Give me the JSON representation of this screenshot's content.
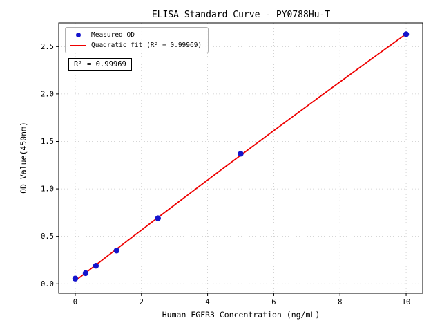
{
  "chart_data": {
    "type": "scatter",
    "title": "ELISA Standard Curve - PY0788Hu-T",
    "xlabel": "Human FGFR3 Concentration (ng/mL)",
    "ylabel": "OD Value(450nm)",
    "xlim": [
      -0.5,
      10.5
    ],
    "ylim": [
      -0.1,
      2.75
    ],
    "xticks": [
      0,
      2,
      4,
      6,
      8,
      10
    ],
    "xtick_labels": [
      "0",
      "2",
      "4",
      "6",
      "8",
      "10"
    ],
    "yticks": [
      0.0,
      0.5,
      1.0,
      1.5,
      2.0,
      2.5
    ],
    "ytick_labels": [
      "0.0",
      "0.5",
      "1.0",
      "1.5",
      "2.0",
      "2.5"
    ],
    "grid": "dotted",
    "series": [
      {
        "name": "Measured OD",
        "type": "scatter",
        "color": "#1414cc",
        "x": [
          0,
          0.3125,
          0.625,
          1.25,
          2.5,
          5,
          10
        ],
        "y": [
          0.055,
          0.112,
          0.19,
          0.35,
          0.69,
          1.37,
          2.63
        ]
      },
      {
        "name": "Quadratic fit (R² = 0.99969)",
        "type": "line",
        "color": "#ee0000",
        "fit": "quadratic",
        "x_range": [
          0,
          10
        ]
      }
    ],
    "legend": {
      "position": "upper-left",
      "items": [
        {
          "label": "Measured OD"
        },
        {
          "label": "Quadratic fit (R² = 0.99969)"
        }
      ]
    },
    "annotation": "R² = 0.99969",
    "colors": {
      "points": "#1414cc",
      "fit_line": "#ee0000",
      "grid": "#c9c9c9",
      "frame": "#000000"
    }
  }
}
